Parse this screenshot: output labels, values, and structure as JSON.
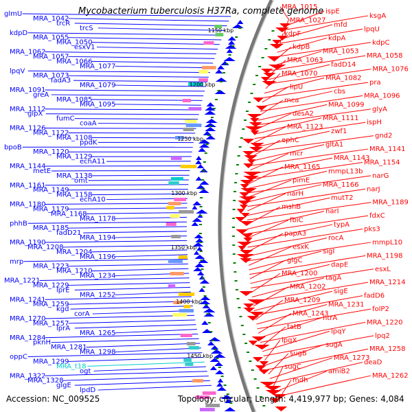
{
  "title": "Mycobacterium tuberculosis H37Ra, complete genome",
  "footer": {
    "accession": "Accession: NC_009525",
    "topology": "Topology: circular; Length: 4,419,977 bp; Genes: 4,084"
  },
  "colors": {
    "forward": "#0000ff",
    "reverse": "#ff0000",
    "rna": "#00cccc",
    "backbone": "#808080",
    "tick": "#008000"
  },
  "scale_labels": [
    "1150 kbp",
    "1200 kbp",
    "1250 kbp",
    "1300 kbp",
    "1350 kbp",
    "1400 kbp",
    "1450 kbp"
  ],
  "left_genes": [
    "glmU",
    "MRA_1042",
    "trcR",
    "trcS",
    "kdpD",
    "MRA_1055",
    "MRA_1050",
    "esxV1",
    "MRA_1062",
    "MRA_1057",
    "MRA_1066",
    "MRA_1077",
    "lpqV",
    "MRA_1073",
    "fadA3",
    "MRA_1079",
    "MRA_1091",
    "greA",
    "MRA_1085",
    "MRA_1095",
    "MRA_1112",
    "glpX",
    "fumC",
    "coaA",
    "MRA_1126",
    "MRA_1122",
    "MRA_1108",
    "ppdK",
    "bpoB",
    "MRA_1120",
    "MRA_1129",
    "echA11",
    "MRA_1144",
    "metE",
    "MRA_1138",
    "omt",
    "MRA_1161",
    "MRA_1149",
    "MRA_1158",
    "echA10",
    "MRA_1180",
    "MRA_1179",
    "MRA_1168",
    "MRA_1178",
    "phhB",
    "MRA_1185",
    "fadD21",
    "MRA_1194",
    "MRA_1190",
    "MRA_1208",
    "MRA_1204",
    "MRA_1196",
    "mrp",
    "MRA_1223",
    "MRA_1210",
    "MRA_1234",
    "MRA_1221",
    "MRA_1229",
    "lprE",
    "MRA_1252",
    "MRA_1241",
    "MRA_1259",
    "kgd",
    "corA",
    "MRA_1270",
    "MRA_1257",
    "lprA",
    "MRA_1265",
    "MRA_1284",
    "pknH",
    "MRA_1281",
    "MRA_1298",
    "oppC",
    "MRA_1299",
    "MRA_t18",
    "ogt",
    "MRA_1322",
    "MRA_1328",
    "glgE",
    "lpdD"
  ],
  "right_genes": [
    "MRA_1015",
    "ispE",
    "ksgA",
    "MRA_1027",
    "mfd",
    "lpqU",
    "kdpF",
    "kdpA",
    "kdpC",
    "kdpB",
    "MRA_1053",
    "MRA_1058",
    "MRA_1063",
    "fadD14",
    "MRA_1076",
    "MRA_1070",
    "MRA_1082",
    "pra",
    "lipU",
    "cbs",
    "MRA_1096",
    "mca",
    "MRA_1099",
    "glyA",
    "desA2",
    "MRA_1111",
    "ispH",
    "MRA_1123",
    "zwf1",
    "gnd2",
    "ephC",
    "gltA1",
    "MRA_1141",
    "mcr",
    "MRA_1143",
    "MRA_1154",
    "MRA_1165",
    "mmpL13b",
    "narG",
    "pimE",
    "MRA_1166",
    "narJ",
    "narH",
    "mutT2",
    "MRA_1189",
    "mshB",
    "narI",
    "fdxC",
    "fbiC",
    "typA",
    "pks3",
    "papA3",
    "rocA",
    "mmpL10",
    "esxK",
    "sigI",
    "MRA_1198",
    "glgC",
    "dapE",
    "esxL",
    "MRA_1200",
    "tagA",
    "MRA_1214",
    "MRA_1202",
    "sigE",
    "fadD6",
    "MRA_1209",
    "MRA_1231",
    "folP2",
    "MRA_1243",
    "htrA",
    "MRA_1220",
    "tatB",
    "lpqY",
    "lpq2",
    "lpqX",
    "sugA",
    "MRA_1258",
    "sugB",
    "MRA_1273",
    "deaD",
    "sugC",
    "amiB2",
    "MRA_1262",
    "mdh"
  ]
}
